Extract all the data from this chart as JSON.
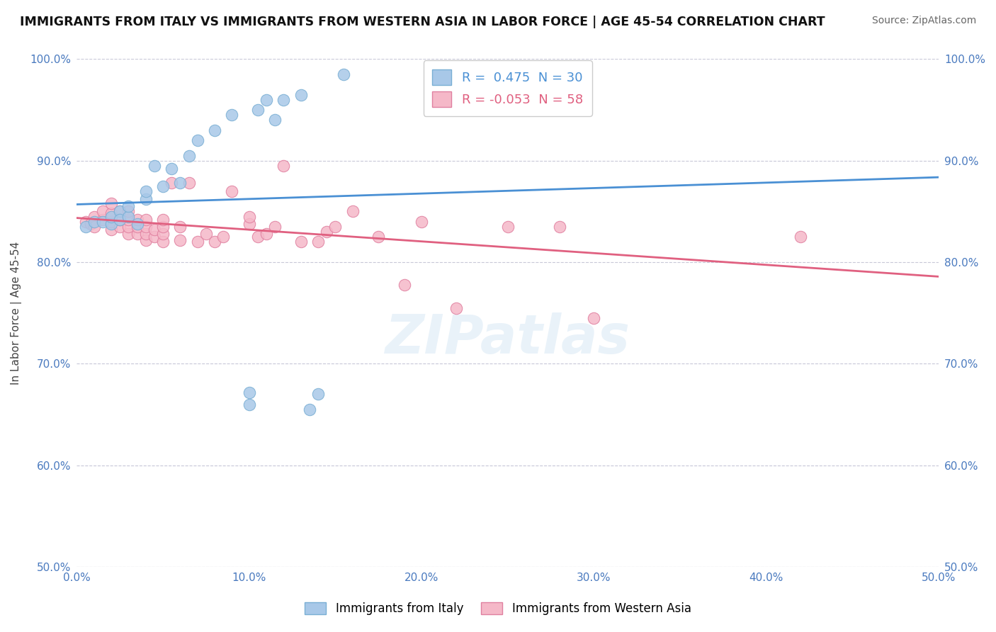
{
  "title": "IMMIGRANTS FROM ITALY VS IMMIGRANTS FROM WESTERN ASIA IN LABOR FORCE | AGE 45-54 CORRELATION CHART",
  "source": "Source: ZipAtlas.com",
  "ylabel": "In Labor Force | Age 45-54",
  "xlim": [
    0.0,
    0.5
  ],
  "ylim": [
    0.5,
    1.0
  ],
  "xtick_labels": [
    "0.0%",
    "10.0%",
    "20.0%",
    "30.0%",
    "40.0%",
    "50.0%"
  ],
  "xtick_values": [
    0.0,
    0.1,
    0.2,
    0.3,
    0.4,
    0.5
  ],
  "ytick_labels": [
    "50.0%",
    "60.0%",
    "70.0%",
    "80.0%",
    "90.0%",
    "100.0%"
  ],
  "ytick_values": [
    0.5,
    0.6,
    0.7,
    0.8,
    0.9,
    1.0
  ],
  "italy_color": "#a8c8e8",
  "italy_edge_color": "#7aafd4",
  "western_asia_color": "#f5b8c8",
  "western_asia_edge_color": "#e080a0",
  "italy_R": 0.475,
  "italy_N": 30,
  "western_asia_R": -0.053,
  "western_asia_N": 58,
  "italy_line_color": "#4a90d4",
  "western_asia_line_color": "#e06080",
  "watermark": "ZIPatlas",
  "background_color": "#ffffff",
  "grid_color": "#c8c8d8",
  "italy_x": [
    0.005,
    0.01,
    0.015,
    0.02,
    0.02,
    0.025,
    0.025,
    0.03,
    0.03,
    0.035,
    0.04,
    0.04,
    0.045,
    0.05,
    0.055,
    0.06,
    0.065,
    0.07,
    0.08,
    0.09,
    0.1,
    0.1,
    0.105,
    0.11,
    0.115,
    0.12,
    0.13,
    0.135,
    0.14,
    0.155
  ],
  "italy_y": [
    0.835,
    0.84,
    0.84,
    0.838,
    0.845,
    0.85,
    0.842,
    0.845,
    0.855,
    0.838,
    0.862,
    0.87,
    0.895,
    0.875,
    0.892,
    0.878,
    0.905,
    0.92,
    0.93,
    0.945,
    0.66,
    0.672,
    0.95,
    0.96,
    0.94,
    0.96,
    0.965,
    0.655,
    0.67,
    0.985
  ],
  "western_asia_x": [
    0.005,
    0.008,
    0.01,
    0.01,
    0.015,
    0.015,
    0.02,
    0.02,
    0.02,
    0.02,
    0.025,
    0.025,
    0.025,
    0.03,
    0.03,
    0.03,
    0.03,
    0.035,
    0.035,
    0.035,
    0.04,
    0.04,
    0.04,
    0.04,
    0.045,
    0.045,
    0.05,
    0.05,
    0.05,
    0.05,
    0.055,
    0.06,
    0.06,
    0.065,
    0.07,
    0.075,
    0.08,
    0.085,
    0.09,
    0.1,
    0.1,
    0.105,
    0.11,
    0.115,
    0.12,
    0.13,
    0.14,
    0.145,
    0.15,
    0.16,
    0.175,
    0.19,
    0.2,
    0.22,
    0.25,
    0.28,
    0.3,
    0.42
  ],
  "western_asia_y": [
    0.84,
    0.838,
    0.845,
    0.835,
    0.842,
    0.85,
    0.832,
    0.84,
    0.848,
    0.858,
    0.835,
    0.842,
    0.85,
    0.828,
    0.835,
    0.842,
    0.85,
    0.828,
    0.835,
    0.842,
    0.822,
    0.828,
    0.835,
    0.842,
    0.825,
    0.832,
    0.82,
    0.828,
    0.835,
    0.842,
    0.878,
    0.822,
    0.835,
    0.878,
    0.82,
    0.828,
    0.82,
    0.825,
    0.87,
    0.838,
    0.845,
    0.825,
    0.828,
    0.835,
    0.895,
    0.82,
    0.82,
    0.83,
    0.835,
    0.85,
    0.825,
    0.778,
    0.84,
    0.755,
    0.835,
    0.835,
    0.745,
    0.825
  ],
  "legend_label_italy": "R =  0.475  N = 30",
  "legend_label_wa": "R = -0.053  N = 58"
}
